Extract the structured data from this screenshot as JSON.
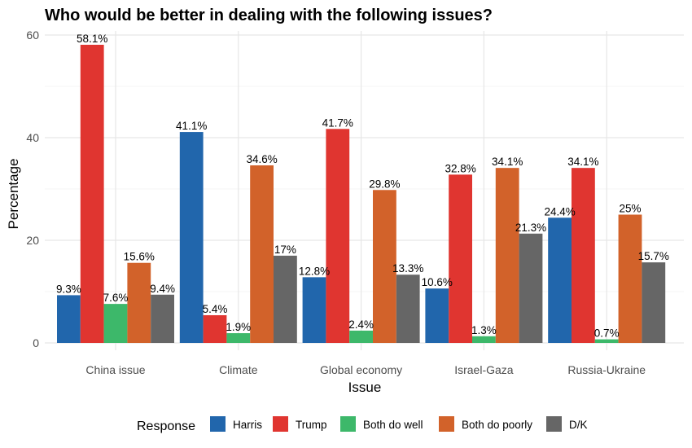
{
  "chart_data": {
    "type": "bar",
    "title": "Who would be better in dealing with the following issues?",
    "xlabel": "Issue",
    "ylabel": "Percentage",
    "ylim": [
      0,
      61
    ],
    "yticks": [
      0,
      20,
      40,
      60
    ],
    "grid": true,
    "legend_position": "bottom",
    "legend_title": "Response",
    "categories": [
      "China issue",
      "Climate",
      "Global economy",
      "Israel-Gaza",
      "Russia-Ukraine"
    ],
    "series": [
      {
        "name": "Harris",
        "color": "#2166ac",
        "values": [
          9.3,
          41.1,
          12.8,
          10.6,
          24.4
        ],
        "labels": [
          "9.3%",
          "41.1%",
          "12.8%",
          "10.6%",
          "24.4%"
        ]
      },
      {
        "name": "Trump",
        "color": "#e03530",
        "values": [
          58.1,
          5.4,
          41.7,
          32.8,
          34.1
        ],
        "labels": [
          "58.1%",
          "5.4%",
          "41.7%",
          "32.8%",
          "34.1%"
        ]
      },
      {
        "name": "Both do well",
        "color": "#3db86a",
        "values": [
          7.6,
          1.9,
          2.4,
          1.3,
          0.7
        ],
        "labels": [
          "7.6%",
          "1.9%",
          "2.4%",
          "1.3%",
          "0.7%"
        ]
      },
      {
        "name": "Both do poorly",
        "color": "#d2622a",
        "values": [
          15.6,
          34.6,
          29.8,
          34.1,
          25
        ],
        "labels": [
          "15.6%",
          "34.6%",
          "29.8%",
          "34.1%",
          "25%"
        ]
      },
      {
        "name": "D/K",
        "color": "#666666",
        "values": [
          9.4,
          17,
          13.3,
          21.3,
          15.7
        ],
        "labels": [
          "9.4%",
          "17%",
          "13.3%",
          "21.3%",
          "15.7%"
        ]
      }
    ]
  }
}
